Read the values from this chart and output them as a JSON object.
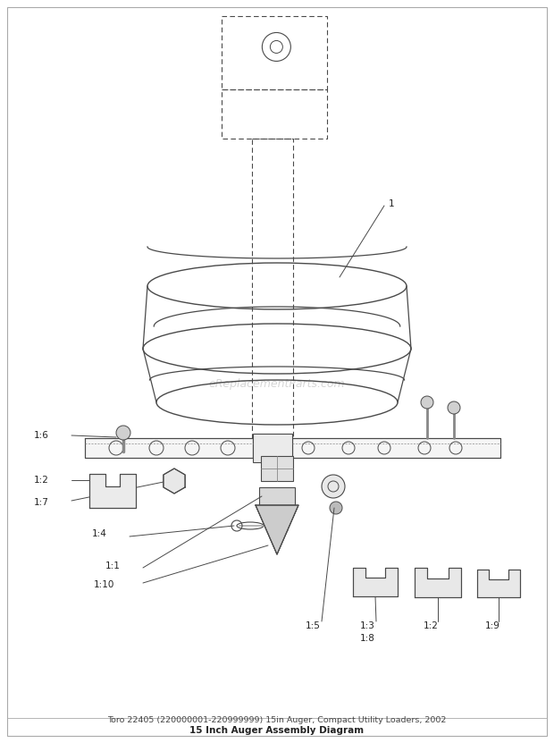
{
  "bg_color": "#ffffff",
  "lc": "#4a4a4a",
  "lc_light": "#888888",
  "title_line1": "Toro 22405 (220000001-220999999) 15in Auger, Compact Utility Loaders, 2002",
  "title_line2": "15 Inch Auger Assembly Diagram",
  "watermark": "eReplacementParts.com",
  "fig_w": 6.2,
  "fig_h": 8.31,
  "dpi": 100
}
